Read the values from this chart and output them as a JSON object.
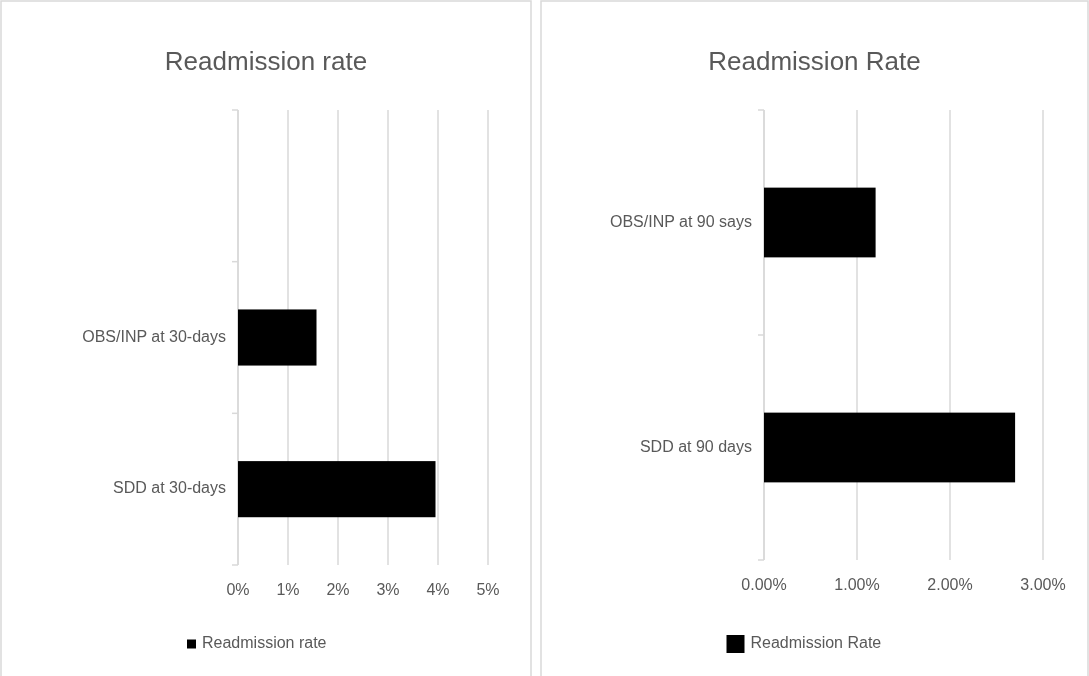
{
  "chart_data": [
    {
      "type": "bar",
      "orientation": "horizontal",
      "title": "Readmission rate",
      "categories": [
        null,
        "OBS/INP at 30-days",
        "SDD at 30-days"
      ],
      "series": [
        {
          "name": "Readmission rate",
          "color": "#000000",
          "values": [
            null,
            1.57,
            3.95
          ]
        }
      ],
      "xlim": [
        0,
        5
      ],
      "xticks": [
        {
          "value": 0,
          "label": "0%"
        },
        {
          "value": 1,
          "label": "1%"
        },
        {
          "value": 2,
          "label": "2%"
        },
        {
          "value": 3,
          "label": "3%"
        },
        {
          "value": 4,
          "label": "4%"
        },
        {
          "value": 5,
          "label": "5%"
        }
      ],
      "grid": "x",
      "legend": "bottom"
    },
    {
      "type": "bar",
      "orientation": "horizontal",
      "title": "Readmission Rate",
      "categories": [
        "OBS/INP at 90 says",
        "SDD at 90 days"
      ],
      "series": [
        {
          "name": "Readmission Rate",
          "color": "#000000",
          "values": [
            1.2,
            2.7
          ]
        }
      ],
      "xlim": [
        0,
        3
      ],
      "xticks": [
        {
          "value": 0,
          "label": "0.00%"
        },
        {
          "value": 1,
          "label": "1.00%"
        },
        {
          "value": 2,
          "label": "2.00%"
        },
        {
          "value": 3,
          "label": "3.00%"
        }
      ],
      "grid": "x",
      "legend": "bottom"
    }
  ]
}
